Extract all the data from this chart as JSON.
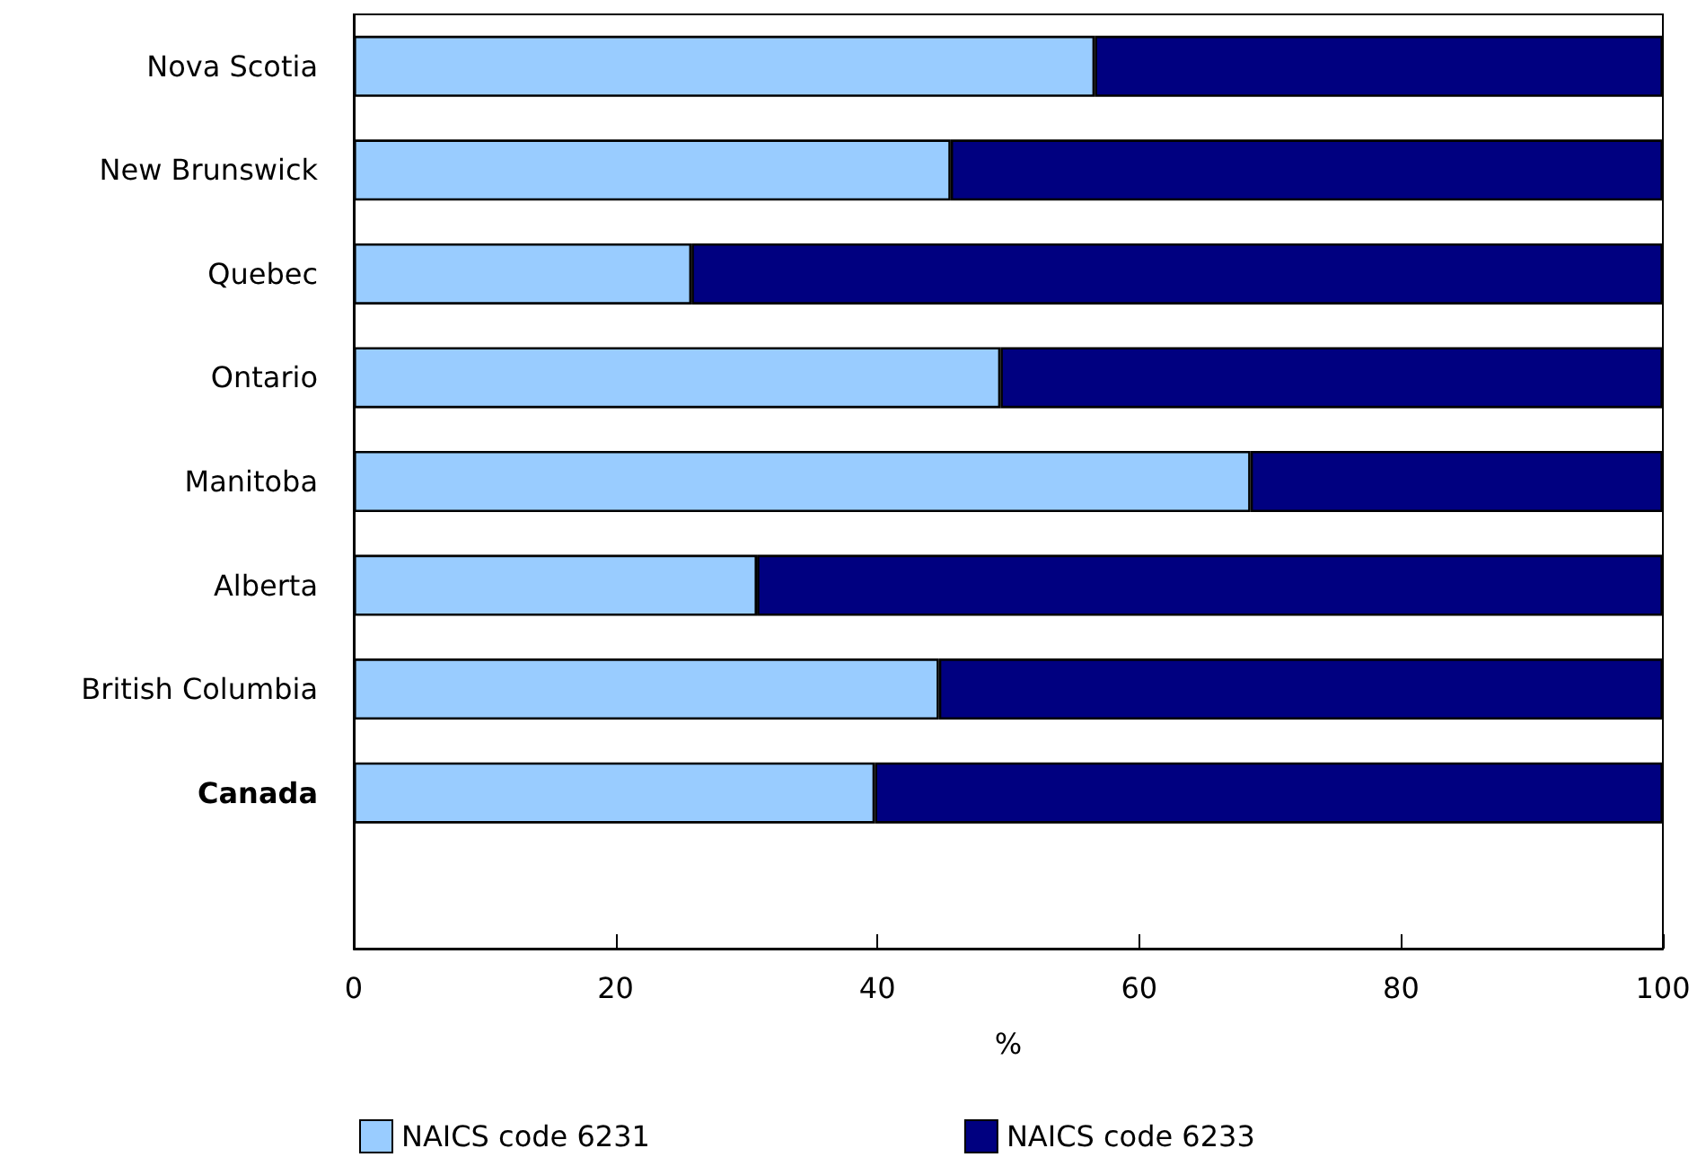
{
  "chart_data": {
    "type": "bar",
    "orientation": "horizontal",
    "stacked": true,
    "xlabel": "%",
    "categories": [
      "Nova Scotia",
      "New Brunswick",
      "Quebec",
      "Ontario",
      "Manitoba",
      "Alberta",
      "British Columbia",
      "Canada"
    ],
    "series": [
      {
        "name": "NAICS code 6231",
        "color": "#99ccff",
        "values": [
          56.6,
          45.6,
          25.8,
          49.4,
          68.5,
          30.8,
          44.7,
          39.8
        ]
      },
      {
        "name": "NAICS code 6233",
        "color": "#000080",
        "values": [
          43.4,
          54.4,
          74.2,
          50.6,
          31.5,
          69.2,
          55.3,
          60.2
        ]
      }
    ],
    "xlim": [
      0,
      100
    ],
    "xticks": [
      0,
      20,
      40,
      60,
      80,
      100
    ],
    "grid": false,
    "legend": "bottom"
  }
}
